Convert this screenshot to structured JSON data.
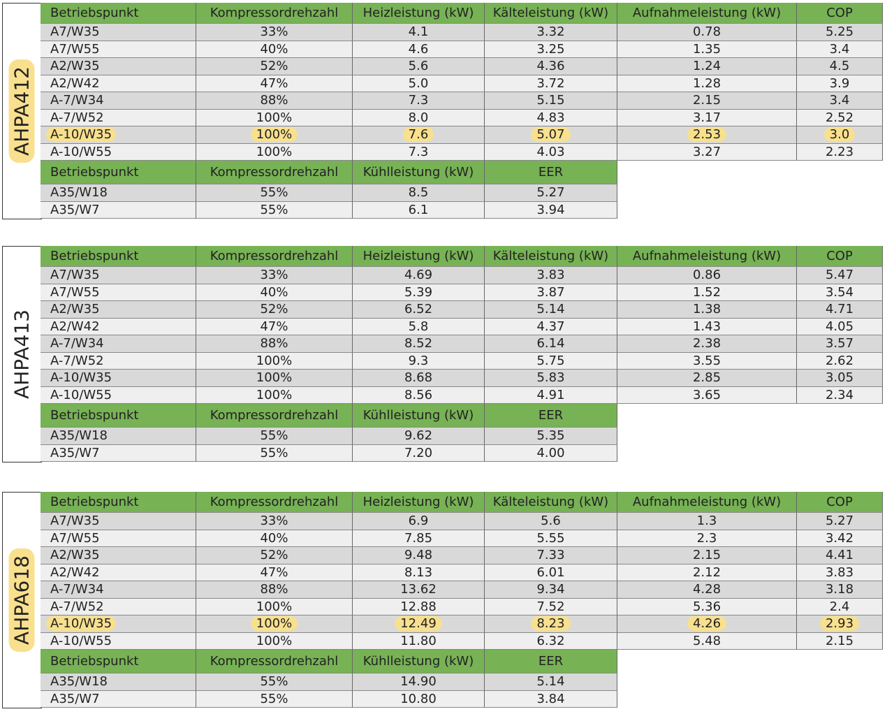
{
  "blocks": [
    {
      "label": "AHPA412",
      "label_highlighted": true,
      "highlight_row": 6,
      "heating": {
        "headers": [
          "Betriebspunkt",
          "Kompressordrehzahl",
          "Heizleistung (kW)",
          "Kälteleistung (kW)",
          "Aufnahmeleistung (kW)",
          "COP"
        ],
        "rows": [
          [
            "A7/W35",
            "33%",
            "4.1",
            "3.32",
            "0.78",
            "5.25"
          ],
          [
            "A7/W55",
            "40%",
            "4.6",
            "3.25",
            "1.35",
            "3.4"
          ],
          [
            "A2/W35",
            "52%",
            "5.6",
            "4.36",
            "1.24",
            "4.5"
          ],
          [
            "A2/W42",
            "47%",
            "5.0",
            "3.72",
            "1.28",
            "3.9"
          ],
          [
            "A-7/W34",
            "88%",
            "7.3",
            "5.15",
            "2.15",
            "3.4"
          ],
          [
            "A-7/W52",
            "100%",
            "8.0",
            "4.83",
            "3.17",
            "2.52"
          ],
          [
            "A-10/W35",
            "100%",
            "7.6",
            "5.07",
            "2.53",
            "3.0"
          ],
          [
            "A-10/W55",
            "100%",
            "7.3",
            "4.03",
            "3.27",
            "2.23"
          ]
        ]
      },
      "cooling": {
        "headers": [
          "Betriebspunkt",
          "Kompressordrehzahl",
          "Kühlleistung (kW)",
          "EER"
        ],
        "rows": [
          [
            "A35/W18",
            "55%",
            "8.5",
            "5.27"
          ],
          [
            "A35/W7",
            "55%",
            "6.1",
            "3.94"
          ]
        ]
      }
    },
    {
      "label": "AHPA413",
      "label_highlighted": false,
      "heating": {
        "headers": [
          "Betriebspunkt",
          "Kompressordrehzahl",
          "Heizleistung (kW)",
          "Kälteleistung (kW)",
          "Aufnahmeleistung (kW)",
          "COP"
        ],
        "rows": [
          [
            "A7/W35",
            "33%",
            "4.69",
            "3.83",
            "0.86",
            "5.47"
          ],
          [
            "A7/W55",
            "40%",
            "5.39",
            "3.87",
            "1.52",
            "3.54"
          ],
          [
            "A2/W35",
            "52%",
            "6.52",
            "5.14",
            "1.38",
            "4.71"
          ],
          [
            "A2/W42",
            "47%",
            "5.8",
            "4.37",
            "1.43",
            "4.05"
          ],
          [
            "A-7/W34",
            "88%",
            "8.52",
            "6.14",
            "2.38",
            "3.57"
          ],
          [
            "A-7/W52",
            "100%",
            "9.3",
            "5.75",
            "3.55",
            "2.62"
          ],
          [
            "A-10/W35",
            "100%",
            "8.68",
            "5.83",
            "2.85",
            "3.05"
          ],
          [
            "A-10/W55",
            "100%",
            "8.56",
            "4.91",
            "3.65",
            "2.34"
          ]
        ]
      },
      "cooling": {
        "headers": [
          "Betriebspunkt",
          "Kompressordrehzahl",
          "Kühlleistung (kW)",
          "EER"
        ],
        "rows": [
          [
            "A35/W18",
            "55%",
            "9.62",
            "5.35"
          ],
          [
            "A35/W7",
            "55%",
            "7.20",
            "4.00"
          ]
        ]
      }
    },
    {
      "label": "AHPA618",
      "label_highlighted": true,
      "highlight_row": 6,
      "heating": {
        "headers": [
          "Betriebspunkt",
          "Kompressordrehzahl",
          "Heizleistung (kW)",
          "Kälteleistung (kW)",
          "Aufnahmeleistung (kW)",
          "COP"
        ],
        "rows": [
          [
            "A7/W35",
            "33%",
            "6.9",
            "5.6",
            "1.3",
            "5.27"
          ],
          [
            "A7/W55",
            "40%",
            "7.85",
            "5.55",
            "2.3",
            "3.42"
          ],
          [
            "A2/W35",
            "52%",
            "9.48",
            "7.33",
            "2.15",
            "4.41"
          ],
          [
            "A2/W42",
            "47%",
            "8.13",
            "6.01",
            "2.12",
            "3.83"
          ],
          [
            "A-7/W34",
            "88%",
            "13.62",
            "9.34",
            "4.28",
            "3.18"
          ],
          [
            "A-7/W52",
            "100%",
            "12.88",
            "7.52",
            "5.36",
            "2.4"
          ],
          [
            "A-10/W35",
            "100%",
            "12.49",
            "8.23",
            "4.26",
            "2.93"
          ],
          [
            "A-10/W55",
            "100%",
            "11.80",
            "6.32",
            "5.48",
            "2.15"
          ]
        ]
      },
      "cooling": {
        "headers": [
          "Betriebspunkt",
          "Kompressordrehzahl",
          "Kühlleistung (kW)",
          "EER"
        ],
        "rows": [
          [
            "A35/W18",
            "55%",
            "14.90",
            "5.14"
          ],
          [
            "A35/W7",
            "55%",
            "10.80",
            "3.84"
          ]
        ]
      }
    }
  ]
}
